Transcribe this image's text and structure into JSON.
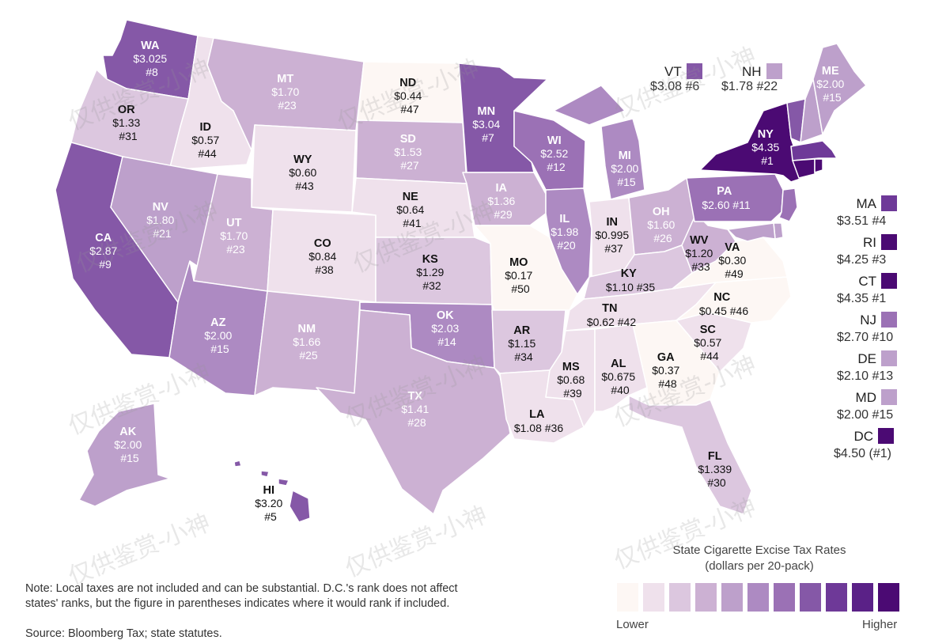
{
  "legend": {
    "title_line1": "State Cigarette Excise Tax Rates",
    "title_line2": "(dollars per 20-pack)",
    "low_label": "Lower",
    "high_label": "Higher",
    "colors": [
      "#fdf7f4",
      "#efe1ec",
      "#dcc7df",
      "#ccb1d3",
      "#bda0cb",
      "#ad8ac2",
      "#9b71b5",
      "#8558a7",
      "#6e3998",
      "#5a2187",
      "#4b0a73"
    ]
  },
  "note": "Note: Local taxes are not included and can be substantial. D.C.'s rank does not affect states' ranks, but the figure in parentheses indicates where it would rank if included.",
  "source": "Source: Bloomberg Tax; state statutes.",
  "watermark": "仅供鉴赏-小神",
  "states": {
    "WA": {
      "abbr": "WA",
      "value": "$3.025",
      "rank": "#8"
    },
    "OR": {
      "abbr": "OR",
      "value": "$1.33",
      "rank": "#31"
    },
    "CA": {
      "abbr": "CA",
      "value": "$2.87",
      "rank": "#9"
    },
    "ID": {
      "abbr": "ID",
      "value": "$0.57",
      "rank": "#44"
    },
    "NV": {
      "abbr": "NV",
      "value": "$1.80",
      "rank": "#21"
    },
    "MT": {
      "abbr": "MT",
      "value": "$1.70",
      "rank": "#23"
    },
    "WY": {
      "abbr": "WY",
      "value": "$0.60",
      "rank": "#43"
    },
    "UT": {
      "abbr": "UT",
      "value": "$1.70",
      "rank": "#23"
    },
    "AZ": {
      "abbr": "AZ",
      "value": "$2.00",
      "rank": "#15"
    },
    "CO": {
      "abbr": "CO",
      "value": "$0.84",
      "rank": "#38"
    },
    "NM": {
      "abbr": "NM",
      "value": "$1.66",
      "rank": "#25"
    },
    "ND": {
      "abbr": "ND",
      "value": "$0.44",
      "rank": "#47"
    },
    "SD": {
      "abbr": "SD",
      "value": "$1.53",
      "rank": "#27"
    },
    "NE": {
      "abbr": "NE",
      "value": "$0.64",
      "rank": "#41"
    },
    "KS": {
      "abbr": "KS",
      "value": "$1.29",
      "rank": "#32"
    },
    "OK": {
      "abbr": "OK",
      "value": "$2.03",
      "rank": "#14"
    },
    "TX": {
      "abbr": "TX",
      "value": "$1.41",
      "rank": "#28"
    },
    "MN": {
      "abbr": "MN",
      "value": "$3.04",
      "rank": "#7"
    },
    "IA": {
      "abbr": "IA",
      "value": "$1.36",
      "rank": "#29"
    },
    "MO": {
      "abbr": "MO",
      "value": "$0.17",
      "rank": "#50"
    },
    "AR": {
      "abbr": "AR",
      "value": "$1.15",
      "rank": "#34"
    },
    "LA": {
      "abbr": "LA",
      "value": "$1.08 #36",
      "rank": ""
    },
    "WI": {
      "abbr": "WI",
      "value": "$2.52",
      "rank": "#12"
    },
    "IL": {
      "abbr": "IL",
      "value": "$1.98",
      "rank": "#20"
    },
    "MI": {
      "abbr": "MI",
      "value": "$2.00",
      "rank": "#15"
    },
    "IN": {
      "abbr": "IN",
      "value": "$0.995",
      "rank": "#37"
    },
    "OH": {
      "abbr": "OH",
      "value": "$1.60",
      "rank": "#26"
    },
    "KY": {
      "abbr": "KY",
      "value": "$1.10 #35",
      "rank": ""
    },
    "TN": {
      "abbr": "TN",
      "value": "$0.62 #42",
      "rank": ""
    },
    "MS": {
      "abbr": "MS",
      "value": "$0.68",
      "rank": "#39"
    },
    "AL": {
      "abbr": "AL",
      "value": "$0.675",
      "rank": "#40"
    },
    "GA": {
      "abbr": "GA",
      "value": "$0.37",
      "rank": "#48"
    },
    "FL": {
      "abbr": "FL",
      "value": "$1.339",
      "rank": "#30"
    },
    "SC": {
      "abbr": "SC",
      "value": "$0.57",
      "rank": "#44"
    },
    "NC": {
      "abbr": "NC",
      "value": "$0.45 #46",
      "rank": ""
    },
    "VA": {
      "abbr": "VA",
      "value": "$0.30",
      "rank": "#49"
    },
    "WV": {
      "abbr": "WV",
      "value": "$1.20",
      "rank": "#33"
    },
    "PA": {
      "abbr": "PA",
      "value": "$2.60 #11",
      "rank": ""
    },
    "NY": {
      "abbr": "NY",
      "value": "$4.35",
      "rank": "#1"
    },
    "ME": {
      "abbr": "ME",
      "value": "$2.00",
      "rank": "#15"
    },
    "AK": {
      "abbr": "AK",
      "value": "$2.00",
      "rank": "#15"
    },
    "HI": {
      "abbr": "HI",
      "value": "$3.20",
      "rank": "#5"
    }
  },
  "top_callouts": {
    "VT": {
      "abbr": "VT",
      "value": "$3.08 #6",
      "color": "#8558a7"
    },
    "NH": {
      "abbr": "NH",
      "value": "$1.78 #22",
      "color": "#bda0cb"
    }
  },
  "side_callouts": [
    {
      "abbr": "MA",
      "value": "$3.51 #4",
      "color": "#6e3998"
    },
    {
      "abbr": "RI",
      "value": "$4.25 #3",
      "color": "#4b0a73"
    },
    {
      "abbr": "CT",
      "value": "$4.35 #1",
      "color": "#4b0a73"
    },
    {
      "abbr": "NJ",
      "value": "$2.70 #10",
      "color": "#9b71b5"
    },
    {
      "abbr": "DE",
      "value": "$2.10 #13",
      "color": "#bda0cb"
    },
    {
      "abbr": "MD",
      "value": "$2.00 #15",
      "color": "#bda0cb"
    },
    {
      "abbr": "DC",
      "value": "$4.50 (#1)",
      "color": "#4b0a73"
    }
  ]
}
